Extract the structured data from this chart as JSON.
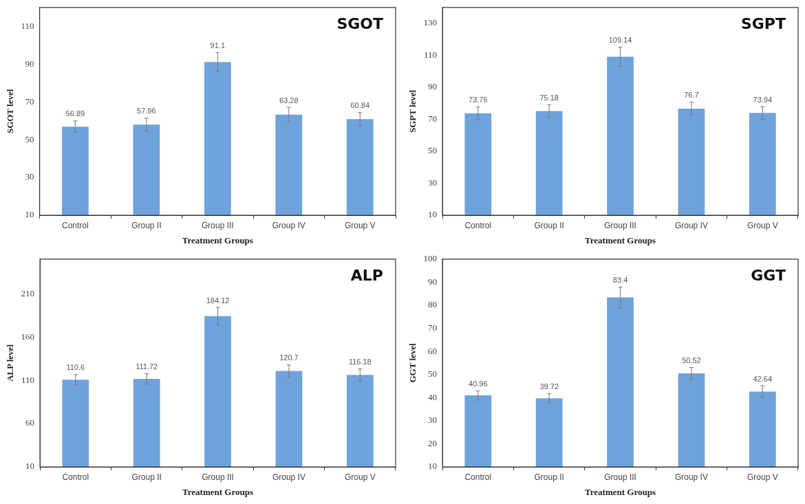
{
  "chart_data": [
    {
      "type": "bar",
      "title": "SGOT",
      "xlabel": "Treatment Groups",
      "ylabel": "SGOT level",
      "categories": [
        "Control",
        "Group II",
        "Group III",
        "Group IV",
        "Group V"
      ],
      "values": [
        56.89,
        57.96,
        91.1,
        63.28,
        60.84
      ],
      "errors": [
        3,
        3.4,
        5,
        3.8,
        3.5
      ],
      "color": "#6fa3dc",
      "ylim": [
        10,
        120
      ],
      "yticks": [
        10,
        30,
        50,
        70,
        90,
        110
      ],
      "data_labels": true
    },
    {
      "type": "bar",
      "title": "SGPT",
      "xlabel": "Treatment Groups",
      "ylabel": "SGPT level",
      "categories": [
        "Control",
        "Group II",
        "Group III",
        "Group IV",
        "Group V"
      ],
      "values": [
        73.76,
        75.18,
        109.14,
        76.7,
        73.94
      ],
      "errors": [
        4,
        4,
        6,
        4,
        4
      ],
      "color": "#6fa3dc",
      "ylim": [
        10,
        140
      ],
      "yticks": [
        10,
        30,
        50,
        70,
        90,
        110,
        130
      ],
      "data_labels": true
    },
    {
      "type": "bar",
      "title": "ALP",
      "xlabel": "Treatment Groups",
      "ylabel": "ALP level",
      "categories": [
        "Control",
        "Group II",
        "Group III",
        "Group IV",
        "Group V"
      ],
      "values": [
        110.6,
        111.72,
        184.12,
        120.7,
        116.18
      ],
      "errors": [
        6,
        6,
        10,
        7,
        7
      ],
      "color": "#6fa3dc",
      "ylim": [
        10,
        250
      ],
      "yticks": [
        10,
        60,
        110,
        160,
        210
      ],
      "data_labels": true
    },
    {
      "type": "bar",
      "title": "GGT",
      "xlabel": "Treatment Groups",
      "ylabel": "GGT level",
      "categories": [
        "Control",
        "Group II",
        "Group III",
        "Group IV",
        "Group V"
      ],
      "values": [
        40.96,
        39.72,
        83.4,
        50.52,
        42.64
      ],
      "errors": [
        2,
        2,
        4.5,
        2.5,
        2.5
      ],
      "color": "#6fa3dc",
      "ylim": [
        10,
        100
      ],
      "yticks": [
        10,
        20,
        30,
        40,
        50,
        60,
        70,
        80,
        90,
        100
      ],
      "data_labels": true
    }
  ]
}
